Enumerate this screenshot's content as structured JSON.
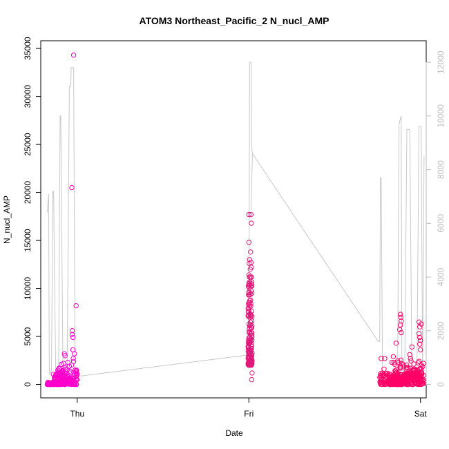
{
  "chart_data": {
    "type": "scatter",
    "title": "ATOM3 Northeast_Pacific_2 N_nucl_AMP",
    "xlabel": "Date",
    "ylabel": "N_nucl_AMP",
    "x_ticks": [
      {
        "label": "Thu",
        "hour": 0
      },
      {
        "label": "Fri",
        "hour": 24
      },
      {
        "label": "Sat",
        "hour": 48
      }
    ],
    "xlim_hours": [
      -5.1,
      48.8
    ],
    "ylim": [
      -1400,
      35800
    ],
    "y_ticks": [
      0,
      5000,
      10000,
      15000,
      20000,
      25000,
      30000,
      35000
    ],
    "y2_ticks": [
      0,
      2000,
      4000,
      6000,
      8000,
      10000,
      12000
    ],
    "y2lim": [
      -500,
      12800
    ],
    "grid": false,
    "legend": "none",
    "colors": {
      "points_early": "#ff00cc",
      "points_mid": "#e0197a",
      "points_late": "#ff0066",
      "altitude_line": "#c8c8c8",
      "axes": "#000000",
      "right_axis": "#bdbdbd"
    },
    "series": [
      {
        "marker": "circle-open",
        "axis": "left",
        "clusters": [
          {
            "color": "points_early",
            "x_range": [
              -4.2,
              0.1
            ],
            "points": [
              [
                -0.5,
                34300
              ],
              [
                -0.75,
                20500
              ],
              [
                -0.15,
                8200
              ],
              [
                -0.7,
                5600
              ],
              [
                -0.7,
                5200
              ],
              [
                -0.6,
                4900
              ],
              [
                -0.6,
                3600
              ],
              [
                -1.8,
                3200
              ],
              [
                -1.7,
                3000
              ],
              [
                -0.4,
                3200
              ],
              [
                -0.55,
                2700
              ],
              [
                -0.5,
                2400
              ],
              [
                -1.3,
                2300
              ],
              [
                -2.2,
                2100
              ],
              [
                -1.9,
                2200
              ],
              [
                -0.8,
                2000
              ],
              [
                -1.1,
                1900
              ],
              [
                -2.7,
                1500
              ],
              [
                -2.6,
                1400
              ],
              [
                -1.6,
                1600
              ],
              [
                -0.3,
                1500
              ],
              [
                -0.2,
                1300
              ],
              [
                -1.0,
                1200
              ],
              [
                -2.4,
                1100
              ],
              [
                -3.0,
                1000
              ]
            ],
            "dense": [
              {
                "x": [
                  -4.2,
                  -3.2
                ],
                "y": [
                  0,
                  300
                ],
                "n": 40
              },
              {
                "x": [
                  -3.4,
                  -2.6
                ],
                "y": [
                  0,
                  1200
                ],
                "n": 45
              },
              {
                "x": [
                  -2.6,
                  -1.4
                ],
                "y": [
                  0,
                  1800
                ],
                "n": 70
              },
              {
                "x": [
                  -1.4,
                  0.0
                ],
                "y": [
                  0,
                  1500
                ],
                "n": 60
              }
            ]
          },
          {
            "color": "points_mid",
            "x_range": [
              23.8,
              24.6
            ],
            "points": [
              [
                24.0,
                17700
              ],
              [
                24.3,
                17700
              ],
              [
                24.35,
                16800
              ],
              [
                24.0,
                14800
              ],
              [
                24.25,
                13800
              ],
              [
                24.1,
                13000
              ],
              [
                24.3,
                12700
              ],
              [
                24.35,
                12200
              ],
              [
                24.2,
                12000
              ],
              [
                24.05,
                12600
              ],
              [
                24.4,
                3000
              ],
              [
                24.3,
                2700
              ],
              [
                24.0,
                2400
              ],
              [
                24.4,
                2200
              ],
              [
                24.45,
                1200
              ],
              [
                24.4,
                500
              ],
              [
                24.1,
                2000
              ],
              [
                23.9,
                2700
              ]
            ],
            "dense": [
              {
                "x": [
                  23.9,
                  24.45
                ],
                "y": [
                  2000,
                  12000
                ],
                "n": 150
              }
            ]
          },
          {
            "color": "points_late",
            "x_range": [
              42.3,
              48.5
            ],
            "points": [
              [
                45.2,
                7300
              ],
              [
                45.25,
                7000
              ],
              [
                45.3,
                6600
              ],
              [
                45.2,
                6200
              ],
              [
                47.8,
                6500
              ],
              [
                48.1,
                6300
              ],
              [
                47.9,
                6000
              ],
              [
                45.1,
                5700
              ],
              [
                45.3,
                5400
              ],
              [
                47.8,
                5300
              ],
              [
                47.9,
                4900
              ],
              [
                48.0,
                4600
              ],
              [
                44.6,
                4300
              ],
              [
                46.8,
                3900
              ],
              [
                47.9,
                4200
              ],
              [
                48.0,
                3600
              ],
              [
                46.5,
                3100
              ],
              [
                44.2,
                2900
              ],
              [
                42.5,
                2700
              ],
              [
                43.0,
                2700
              ],
              [
                46.6,
                2700
              ],
              [
                44.0,
                2300
              ],
              [
                42.9,
                1600
              ],
              [
                48.4,
                2200
              ]
            ],
            "dense": [
              {
                "x": [
                  42.3,
                  48.5
                ],
                "y": [
                  0,
                  1200
                ],
                "n": 260
              },
              {
                "x": [
                  44.2,
                  48.3
                ],
                "y": [
                  600,
                  2600
                ],
                "n": 90
              }
            ]
          }
        ]
      },
      {
        "name": "",
        "type": "line",
        "axis": "right",
        "color": "altitude_line",
        "points": [
          [
            -4.2,
            6400
          ],
          [
            -4.0,
            7100
          ],
          [
            -3.9,
            400
          ],
          [
            -3.6,
            500
          ],
          [
            -3.4,
            7200
          ],
          [
            -3.3,
            7200
          ],
          [
            -3.0,
            300
          ],
          [
            -2.6,
            500
          ],
          [
            -2.4,
            10000
          ],
          [
            -2.3,
            10000
          ],
          [
            -2.0,
            500
          ],
          [
            -1.4,
            700
          ],
          [
            -1.1,
            11100
          ],
          [
            -0.9,
            11100
          ],
          [
            -0.85,
            11800
          ],
          [
            -0.7,
            11800
          ],
          [
            -0.5,
            11800
          ],
          [
            -0.3,
            300
          ],
          [
            0.0,
            300
          ],
          [
            24.0,
            1100
          ],
          [
            24.1,
            12000
          ],
          [
            24.3,
            12000
          ],
          [
            24.4,
            8800
          ],
          [
            24.5,
            8600
          ],
          [
            24.3,
            6500
          ],
          [
            24.5,
            8600
          ],
          [
            42.1,
            1600
          ],
          [
            42.3,
            1600
          ],
          [
            42.4,
            7700
          ],
          [
            42.5,
            7700
          ],
          [
            42.7,
            400
          ],
          [
            44.8,
            400
          ],
          [
            45.0,
            9700
          ],
          [
            45.3,
            10000
          ],
          [
            45.4,
            500
          ],
          [
            45.8,
            500
          ],
          [
            46.1,
            9500
          ],
          [
            46.5,
            9500
          ],
          [
            46.8,
            400
          ],
          [
            47.5,
            400
          ],
          [
            47.8,
            9600
          ],
          [
            48.1,
            9600
          ],
          [
            48.3,
            400
          ],
          [
            48.5,
            8500
          ]
        ]
      }
    ]
  }
}
